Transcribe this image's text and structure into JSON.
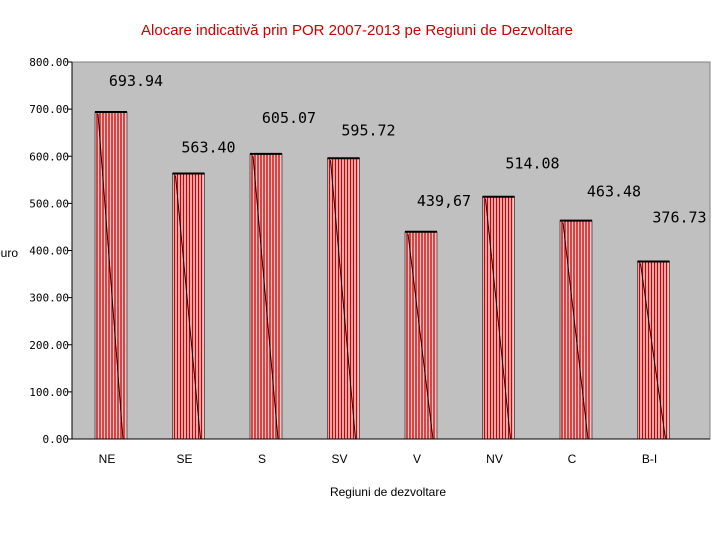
{
  "chart_data": {
    "type": "bar",
    "title": "Alocare indicativă prin POR 2007-2013 pe Regiuni de Dezvoltare",
    "xlabel": "Regiuni de dezvoltare",
    "ylabel": "euro",
    "categories": [
      "NE",
      "SE",
      "S",
      "SV",
      "V",
      "NV",
      "C",
      "B-I"
    ],
    "values": [
      693.94,
      563.4,
      605.07,
      595.72,
      439.67,
      514.08,
      463.48,
      376.73
    ],
    "data_labels": [
      "693.94",
      "563.40",
      "605.07",
      "595.72",
      "439,67",
      "514.08",
      "463.48",
      "376.73"
    ],
    "ylim": [
      0,
      800
    ],
    "yticks": [
      0,
      100,
      200,
      300,
      400,
      500,
      600,
      700,
      800
    ],
    "ytick_labels": [
      "0.00",
      "100.00",
      "200.00",
      "300.00",
      "400.00",
      "500.00",
      "600.00",
      "700.00",
      "800.00"
    ],
    "grid": false,
    "legend": "none",
    "colors": {
      "title": "#cc0000",
      "plot_background": "#c0c0c0",
      "bar_fill": "#f2c4c4",
      "bar_stripe": "#cc0000"
    }
  }
}
